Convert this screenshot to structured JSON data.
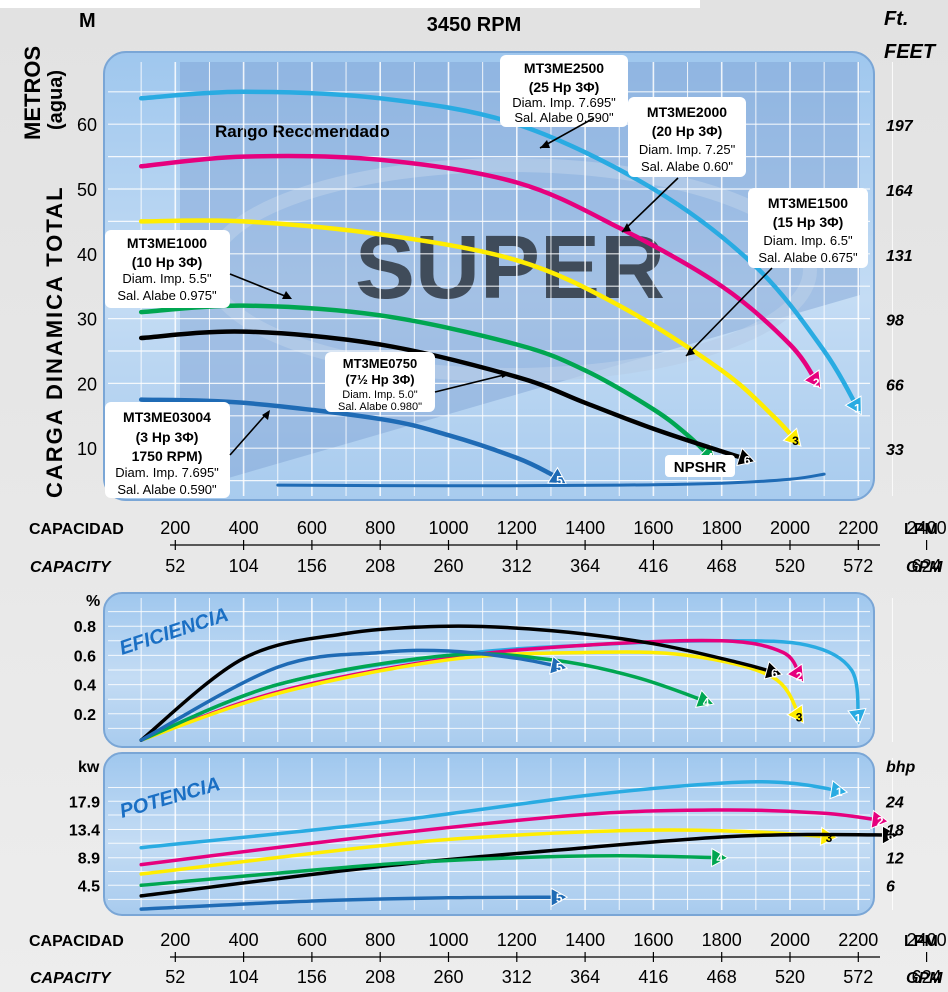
{
  "header": {
    "rpm": "3450 RPM",
    "left_unit": "M",
    "right_unit_1": "Ft.",
    "right_unit_2": "FEET",
    "metros": "METROS",
    "agua": "(agua)",
    "ylabel": "CARGA DINAMICA TOTAL",
    "range_text": "Rango Recomendado",
    "watermark": "SUPER"
  },
  "capacity_axis": {
    "label_es": "CAPACIDAD",
    "label_en": "CAPACITY",
    "lpm_unit": "LPM",
    "gpm_unit": "GPM",
    "lpm": [
      "200",
      "400",
      "600",
      "800",
      "1000",
      "1200",
      "1400",
      "1600",
      "1800",
      "2000",
      "2200",
      "2400"
    ],
    "gpm": [
      "52",
      "104",
      "156",
      "208",
      "260",
      "312",
      "364",
      "416",
      "468",
      "520",
      "572",
      "624"
    ]
  },
  "head_axis": {
    "metros": [
      "60",
      "50",
      "40",
      "30",
      "20",
      "10"
    ],
    "feet": [
      "197",
      "164",
      "131",
      "98",
      "66",
      "33"
    ]
  },
  "eff_axis": {
    "unit": "%",
    "title": "EFICIENCIA",
    "ticks": [
      "0.8",
      "0.6",
      "0.4",
      "0.2"
    ]
  },
  "power_axis": {
    "unit_left": "kw",
    "unit_right": "bhp",
    "title": "POTENCIA",
    "kw": [
      "17.9",
      "13.4",
      "8.9",
      "4.5"
    ],
    "bhp": [
      "24",
      "18",
      "12",
      "6"
    ]
  },
  "annotations": {
    "p1": {
      "name": "MT3ME2500",
      "hp": "(25 Hp 3Φ)",
      "diam": "Diam. Imp. 7.695\"",
      "sal": "Sal. Alabe 0.590\""
    },
    "p2": {
      "name": "MT3ME2000",
      "hp": "(20 Hp 3Φ)",
      "diam": "Diam. Imp. 7.25\"",
      "sal": "Sal. Alabe 0.60\""
    },
    "p3": {
      "name": "MT3ME1500",
      "hp": "(15 Hp 3Φ)",
      "diam": "Diam. Imp. 6.5\"",
      "sal": "Sal. Alabe 0.675\""
    },
    "p4": {
      "name": "MT3ME1000",
      "hp": "(10 Hp 3Φ)",
      "diam": "Diam. Imp. 5.5\"",
      "sal": "Sal. Alabe 0.975\""
    },
    "p6": {
      "name": "MT3ME0750",
      "hp": "(7½ Hp 3Φ)",
      "diam": "Diam. Imp. 5.0\"",
      "sal": "Sal. Alabe 0.980\""
    },
    "p5": {
      "name": "MT3ME03004",
      "hp": "(3 Hp 3Φ)",
      "rpm": "1750 RPM)",
      "diam": "Diam. Imp. 7.695\"",
      "sal": "Sal. Alabe 0.590\""
    },
    "npshr": "NPSHR"
  },
  "chart_data": [
    {
      "type": "line",
      "title": "3450 RPM",
      "xlabel": "CAPACIDAD (LPM)",
      "ylabel": "CARGA DINAMICA TOTAL (M)",
      "xlim": [
        100,
        2400
      ],
      "ylim": [
        3,
        69
      ],
      "grid": true,
      "series": [
        {
          "name": "1",
          "color": "#29abe2",
          "x": [
            100,
            400,
            800,
            1200,
            1600,
            1900,
            2100,
            2200
          ],
          "y": [
            64,
            65,
            64,
            60,
            50,
            38,
            25,
            16
          ]
        },
        {
          "name": "2",
          "color": "#e6007e",
          "x": [
            100,
            400,
            800,
            1200,
            1500,
            1800,
            2000,
            2080
          ],
          "y": [
            53.5,
            55,
            54.5,
            51,
            44,
            35,
            26,
            20
          ]
        },
        {
          "name": "3",
          "color": "#ffed00",
          "x": [
            100,
            400,
            800,
            1200,
            1500,
            1800,
            1950,
            2020
          ],
          "y": [
            45,
            45,
            43,
            39,
            32,
            22,
            15,
            11
          ]
        },
        {
          "name": "4",
          "color": "#00a651",
          "x": [
            100,
            400,
            800,
            1200,
            1400,
            1600,
            1700,
            1770
          ],
          "y": [
            31,
            32,
            30.5,
            26,
            22,
            16,
            12,
            8.5
          ]
        },
        {
          "name": "6",
          "color": "#000000",
          "x": [
            100,
            400,
            800,
            1200,
            1400,
            1600,
            1800,
            1880
          ],
          "y": [
            27,
            28,
            26,
            21,
            17,
            13,
            9.5,
            8.2
          ]
        },
        {
          "name": "5",
          "color": "#1f6bb5",
          "x": [
            100,
            400,
            800,
            1000,
            1200,
            1300,
            1330
          ],
          "y": [
            17.5,
            17,
            14.5,
            12,
            8.5,
            6,
            5
          ]
        },
        {
          "name": "NPSHR",
          "color": "#1f6bb5",
          "x": [
            500,
            1000,
            1500,
            1800,
            2000,
            2100
          ],
          "y": [
            4.3,
            4.2,
            4.3,
            4.6,
            5.2,
            6
          ]
        }
      ]
    },
    {
      "type": "line",
      "title": "EFICIENCIA",
      "xlabel": "CAPACIDAD (LPM)",
      "ylabel": "%",
      "xlim": [
        100,
        2400
      ],
      "ylim": [
        0,
        0.95
      ],
      "grid": true,
      "series": [
        {
          "name": "1",
          "color": "#29abe2",
          "x": [
            100,
            500,
            1000,
            1400,
            1800,
            2050,
            2180,
            2200
          ],
          "y": [
            0.02,
            0.4,
            0.6,
            0.67,
            0.7,
            0.67,
            0.5,
            0.16
          ]
        },
        {
          "name": "2",
          "color": "#e6007e",
          "x": [
            100,
            500,
            1000,
            1400,
            1800,
            1980,
            2030
          ],
          "y": [
            0.02,
            0.35,
            0.58,
            0.67,
            0.7,
            0.62,
            0.45
          ]
        },
        {
          "name": "3",
          "color": "#ffed00",
          "x": [
            100,
            500,
            1000,
            1400,
            1700,
            1950,
            2030
          ],
          "y": [
            0.02,
            0.34,
            0.57,
            0.62,
            0.6,
            0.45,
            0.17
          ]
        },
        {
          "name": "4",
          "color": "#00a651",
          "x": [
            100,
            500,
            1000,
            1300,
            1550,
            1760
          ],
          "y": [
            0.02,
            0.4,
            0.6,
            0.57,
            0.45,
            0.28
          ]
        },
        {
          "name": "6",
          "color": "#000000",
          "x": [
            100,
            400,
            700,
            1000,
            1300,
            1600,
            1850,
            1960
          ],
          "y": [
            0.02,
            0.58,
            0.75,
            0.8,
            0.77,
            0.68,
            0.55,
            0.48
          ]
        },
        {
          "name": "5",
          "color": "#1f6bb5",
          "x": [
            100,
            500,
            800,
            1000,
            1200,
            1330
          ],
          "y": [
            0.02,
            0.52,
            0.62,
            0.63,
            0.58,
            0.52
          ]
        }
      ]
    },
    {
      "type": "line",
      "title": "POTENCIA",
      "xlabel": "CAPACIDAD (LPM)",
      "ylabel": "kw / bhp",
      "xlim": [
        100,
        2400
      ],
      "ylim": [
        0,
        22.4
      ],
      "grid": true,
      "series": [
        {
          "name": "1",
          "color": "#29abe2",
          "x": [
            100,
            800,
            1400,
            1800,
            2000,
            2150
          ],
          "y": [
            10.5,
            14.5,
            18.8,
            20.8,
            20.8,
            19.5
          ]
        },
        {
          "name": "2",
          "color": "#e6007e",
          "x": [
            100,
            800,
            1400,
            1800,
            2100,
            2270
          ],
          "y": [
            7.8,
            12.5,
            15.8,
            16.5,
            16.0,
            14.8
          ]
        },
        {
          "name": "3",
          "color": "#ffed00",
          "x": [
            100,
            800,
            1200,
            1600,
            1900,
            2120
          ],
          "y": [
            6.3,
            10.8,
            12.5,
            13.3,
            13.0,
            12.2
          ]
        },
        {
          "name": "6",
          "color": "#000000",
          "x": [
            100,
            800,
            1400,
            1800,
            2050,
            2300
          ],
          "y": [
            2.8,
            7.5,
            10.5,
            12.2,
            12.6,
            12.5
          ]
        },
        {
          "name": "4",
          "color": "#00a651",
          "x": [
            100,
            800,
            1200,
            1500,
            1800
          ],
          "y": [
            4.5,
            7.8,
            8.9,
            9.2,
            8.9
          ]
        },
        {
          "name": "5",
          "color": "#1f6bb5",
          "x": [
            100,
            600,
            1000,
            1330
          ],
          "y": [
            0.7,
            2.0,
            2.5,
            2.6
          ]
        }
      ]
    }
  ]
}
